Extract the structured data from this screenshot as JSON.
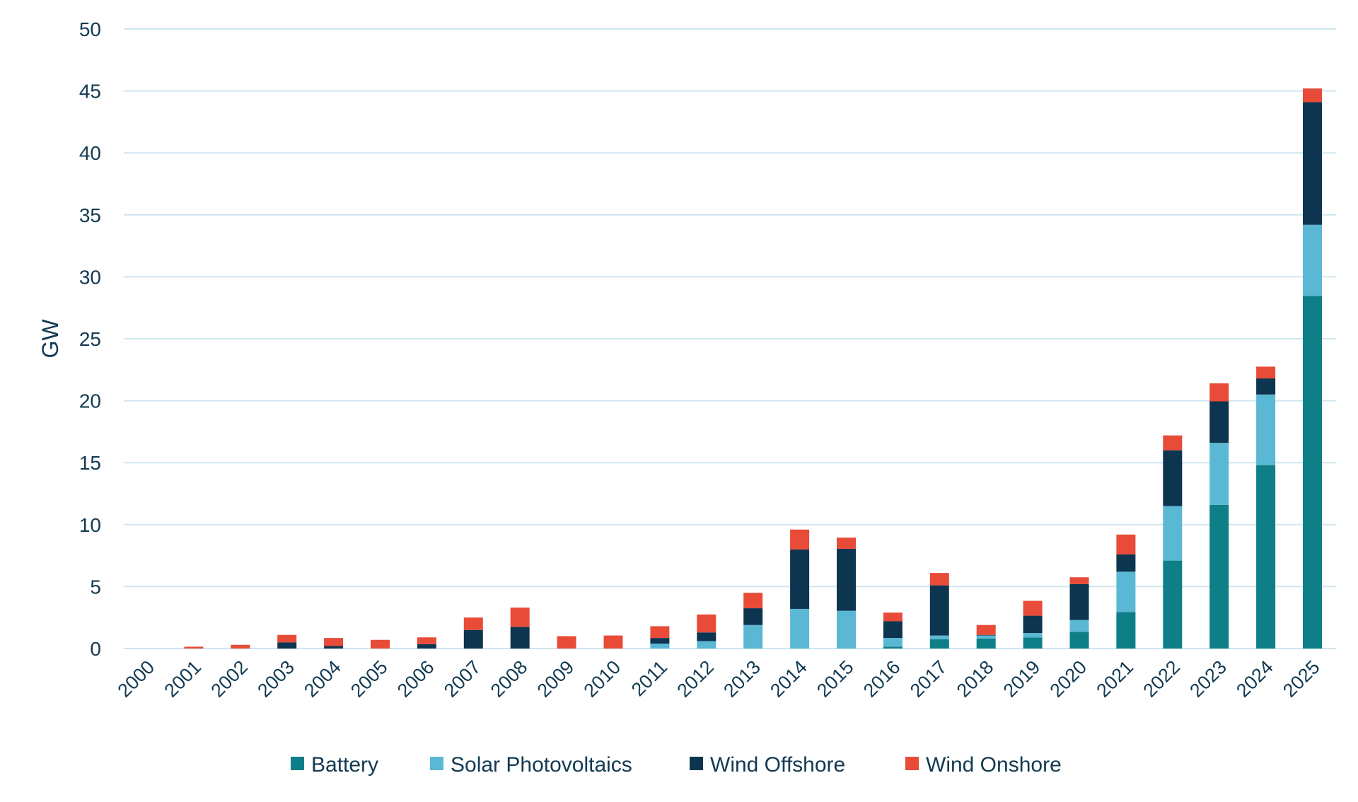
{
  "chart_data": {
    "type": "bar",
    "stacked": true,
    "title": "",
    "xlabel": "",
    "ylabel": "GW",
    "ylim": [
      0,
      50
    ],
    "yticks": [
      0,
      5,
      10,
      15,
      20,
      25,
      30,
      35,
      40,
      45,
      50
    ],
    "grid": true,
    "legend_position": "bottom",
    "categories": [
      "2000",
      "2001",
      "2002",
      "2003",
      "2004",
      "2005",
      "2006",
      "2007",
      "2008",
      "2009",
      "2010",
      "2011",
      "2012",
      "2013",
      "2014",
      "2015",
      "2016",
      "2017",
      "2018",
      "2019",
      "2020",
      "2021",
      "2022",
      "2023",
      "2024",
      "2025"
    ],
    "series": [
      {
        "name": "Battery",
        "color": "#0e7f86",
        "values": [
          0,
          0,
          0,
          0,
          0,
          0,
          0,
          0,
          0,
          0,
          0,
          0,
          0,
          0,
          0,
          0,
          0.15,
          0.75,
          0.8,
          0.9,
          1.35,
          2.95,
          7.1,
          11.6,
          14.8,
          28.45
        ]
      },
      {
        "name": "Solar Photovoltaics",
        "color": "#5bb8d4",
        "values": [
          0,
          0,
          0,
          0,
          0,
          0,
          0,
          0,
          0,
          0,
          0,
          0.4,
          0.6,
          1.9,
          3.2,
          3.05,
          0.7,
          0.3,
          0.25,
          0.35,
          0.95,
          3.25,
          4.4,
          5.0,
          5.7,
          5.75
        ]
      },
      {
        "name": "Wind Offshore",
        "color": "#0d3550",
        "values": [
          0,
          0,
          0,
          0.5,
          0.2,
          0,
          0.35,
          1.5,
          1.75,
          0,
          0,
          0.45,
          0.7,
          1.35,
          4.8,
          5.0,
          1.35,
          4.05,
          0.05,
          1.4,
          2.9,
          1.4,
          4.5,
          3.35,
          1.3,
          9.9
        ]
      },
      {
        "name": "Wind Onshore",
        "color": "#e84b37",
        "values": [
          0,
          0.15,
          0.3,
          0.6,
          0.65,
          0.7,
          0.55,
          1.0,
          1.55,
          1.0,
          1.05,
          0.95,
          1.45,
          1.25,
          1.6,
          0.9,
          0.7,
          1.0,
          0.8,
          1.2,
          0.55,
          1.6,
          1.2,
          1.45,
          0.95,
          1.1
        ]
      }
    ]
  }
}
